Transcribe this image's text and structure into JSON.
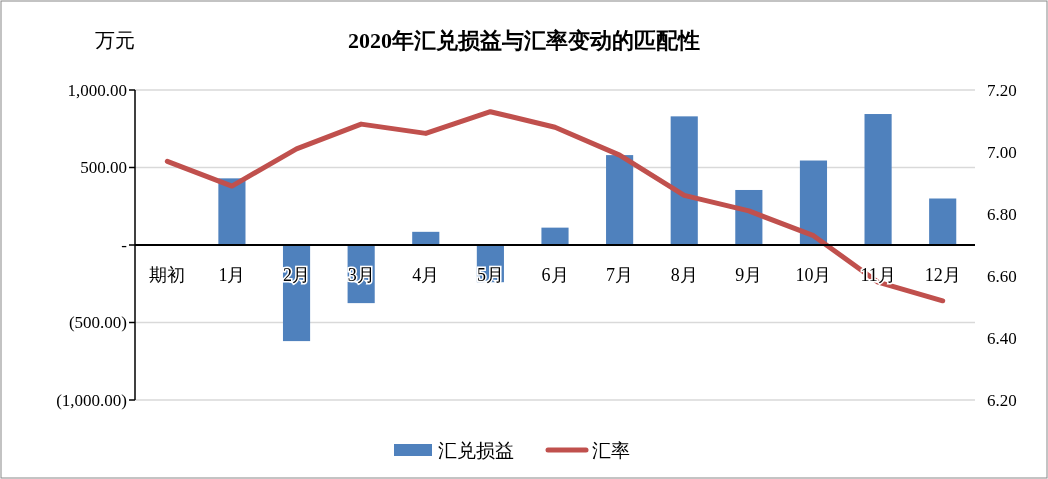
{
  "chart_data": {
    "type": "bar",
    "title": "2020年汇兑损益与汇率变动的匹配性",
    "ylabel": "万元",
    "categories": [
      "期初",
      "1月",
      "2月",
      "3月",
      "4月",
      "5月",
      "6月",
      "7月",
      "8月",
      "9月",
      "10月",
      "11月",
      "12月"
    ],
    "series": [
      {
        "name": "汇兑损益",
        "color": "#4f81bd",
        "values": [
          null,
          430,
          -620,
          -375,
          85,
          -240,
          112,
          580,
          830,
          355,
          545,
          845,
          300
        ]
      },
      {
        "name": "汇率",
        "type": "line",
        "axis": "y2",
        "color": "#c0504d",
        "values": [
          6.97,
          6.89,
          7.01,
          7.09,
          7.06,
          7.13,
          7.08,
          6.99,
          6.86,
          6.81,
          6.73,
          6.58,
          6.52
        ]
      }
    ],
    "ylim": [
      -1000,
      1000
    ],
    "yticks": [
      {
        "value": 1000,
        "label": "1,000.00"
      },
      {
        "value": 500,
        "label": "500.00"
      },
      {
        "value": 0,
        "label": "-"
      },
      {
        "value": -500,
        "label": "(500.00)"
      },
      {
        "value": -1000,
        "label": "(1,000.00)"
      }
    ],
    "y2lim": [
      6.2,
      7.2
    ],
    "y2ticks": [
      {
        "value": 7.2,
        "label": "7.20"
      },
      {
        "value": 7.0,
        "label": "7.00"
      },
      {
        "value": 6.8,
        "label": "6.80"
      },
      {
        "value": 6.6,
        "label": "6.60"
      },
      {
        "value": 6.4,
        "label": "6.40"
      },
      {
        "value": 6.2,
        "label": "6.20"
      }
    ],
    "grid": "y",
    "legend": "bottom"
  }
}
